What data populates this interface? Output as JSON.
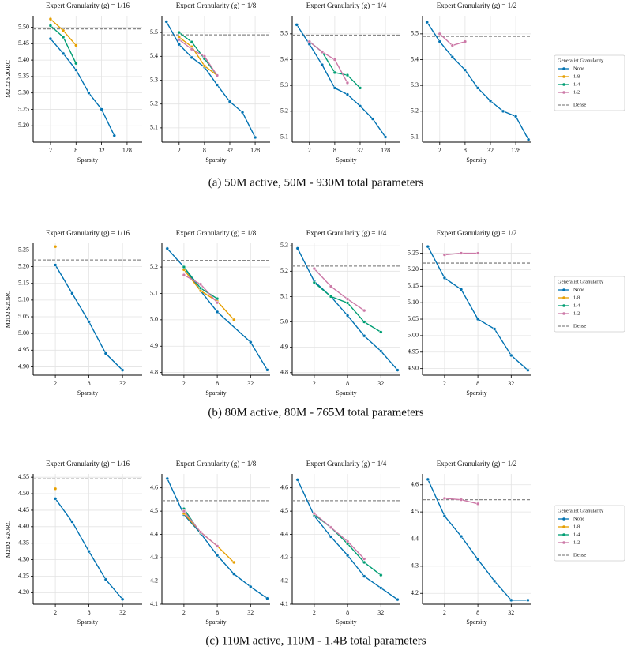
{
  "chart_data": [
    {
      "type": "line",
      "title": "Expert Granularity (g) = 1/16",
      "xlabel": "Sparsity",
      "ylabel": "M2D2 S2ORC",
      "log_x": true,
      "xlim": [
        0.78,
        290
      ],
      "xticks": [
        2,
        8,
        32,
        128
      ],
      "ylim": [
        5.15,
        5.535
      ],
      "yticks": [
        {
          "value": 5.2,
          "label": "5.20"
        },
        5.25,
        {
          "value": 5.3,
          "label": "5.30"
        },
        5.35,
        {
          "value": 5.4,
          "label": "5.40"
        },
        5.45,
        {
          "value": 5.5,
          "label": "5.50"
        }
      ],
      "grid": true,
      "reference_line": {
        "value": 5.495,
        "color": "#888888"
      },
      "series": [
        {
          "name": "None",
          "color": "#0072b2",
          "x": [
            2,
            4,
            8,
            16,
            32,
            64
          ],
          "values": [
            5.465,
            5.42,
            5.37,
            5.3,
            5.25,
            5.17
          ]
        },
        {
          "name": "1/8",
          "color": "#e69f00",
          "x": [
            2,
            4,
            8
          ],
          "values": [
            5.525,
            5.49,
            5.445
          ]
        },
        {
          "name": "1/4",
          "color": "#009e73",
          "x": [
            2,
            4,
            8
          ],
          "values": [
            5.505,
            5.47,
            5.39
          ]
        }
      ]
    },
    {
      "type": "line",
      "title": "Expert Granularity (g) = 1/8",
      "xlabel": "Sparsity",
      "log_x": true,
      "xlim": [
        0.78,
        290
      ],
      "xticks": [
        2,
        8,
        32,
        128
      ],
      "ylim": [
        5.04,
        5.57
      ],
      "yticks": [
        5.1,
        5.2,
        5.3,
        5.4,
        5.5
      ],
      "grid": true,
      "reference_line": {
        "value": 5.49,
        "color": "#888888"
      },
      "series": [
        {
          "name": "None",
          "color": "#0072b2",
          "x": [
            1,
            2,
            4,
            8,
            16,
            32,
            64,
            128
          ],
          "values": [
            5.545,
            5.45,
            5.395,
            5.355,
            5.28,
            5.21,
            5.165,
            5.06
          ]
        },
        {
          "name": "1/8",
          "color": "#e69f00",
          "x": [
            2,
            4,
            8,
            16
          ],
          "values": [
            5.48,
            5.44,
            5.36,
            5.32
          ]
        },
        {
          "name": "1/4",
          "color": "#009e73",
          "x": [
            2,
            4,
            8,
            16
          ],
          "values": [
            5.5,
            5.46,
            5.39,
            5.32
          ]
        },
        {
          "name": "1/2",
          "color": "#cc79a7",
          "x": [
            2,
            4,
            8,
            16
          ],
          "values": [
            5.47,
            5.43,
            5.4,
            5.32
          ]
        }
      ]
    },
    {
      "type": "line",
      "title": "Expert Granularity (g) = 1/4",
      "xlabel": "Sparsity",
      "log_x": true,
      "xlim": [
        0.78,
        290
      ],
      "xticks": [
        2,
        8,
        32,
        128
      ],
      "ylim": [
        5.08,
        5.57
      ],
      "yticks": [
        5.1,
        5.2,
        5.3,
        5.4,
        5.5
      ],
      "grid": true,
      "reference_line": {
        "value": 5.495,
        "color": "#888888"
      },
      "series": [
        {
          "name": "None",
          "color": "#0072b2",
          "x": [
            1,
            2,
            4,
            8,
            16,
            32,
            64,
            128
          ],
          "values": [
            5.535,
            5.46,
            5.38,
            5.29,
            5.265,
            5.22,
            5.17,
            5.1
          ]
        },
        {
          "name": "1/4",
          "color": "#009e73",
          "x": [
            2,
            4,
            8,
            16,
            32
          ],
          "values": [
            5.47,
            5.43,
            5.35,
            5.34,
            5.29
          ]
        },
        {
          "name": "1/2",
          "color": "#cc79a7",
          "x": [
            2,
            4,
            8,
            16
          ],
          "values": [
            5.47,
            5.43,
            5.4,
            5.31
          ]
        }
      ]
    },
    {
      "type": "line",
      "title": "Expert Granularity (g) = 1/2",
      "xlabel": "Sparsity",
      "log_x": true,
      "xlim": [
        0.78,
        290
      ],
      "xticks": [
        2,
        8,
        32,
        128
      ],
      "ylim": [
        5.08,
        5.57
      ],
      "yticks": [
        5.1,
        5.2,
        5.3,
        5.4,
        5.5
      ],
      "grid": true,
      "reference_line": {
        "value": 5.49,
        "color": "#888888"
      },
      "series": [
        {
          "name": "None",
          "color": "#0072b2",
          "x": [
            1,
            2,
            4,
            8,
            16,
            32,
            64,
            128,
            256
          ],
          "values": [
            5.545,
            5.47,
            5.41,
            5.36,
            5.29,
            5.24,
            5.2,
            5.18,
            5.09
          ]
        },
        {
          "name": "1/2",
          "color": "#cc79a7",
          "x": [
            2,
            4,
            8
          ],
          "values": [
            5.5,
            5.455,
            5.47
          ]
        }
      ]
    },
    {
      "type": "line",
      "title": "Expert Granularity (g) = 1/16",
      "xlabel": "Sparsity",
      "ylabel": "M2D2 S2ORC",
      "log_x": true,
      "xlim": [
        0.8,
        72
      ],
      "xticks": [
        2,
        8,
        32
      ],
      "ylim": [
        4.875,
        5.27
      ],
      "yticks": [
        {
          "value": 4.9,
          "label": "4.90"
        },
        4.95,
        {
          "value": 5,
          "label": "5.00"
        },
        5.05,
        {
          "value": 5.1,
          "label": "5.10"
        },
        5.15,
        {
          "value": 5.2,
          "label": "5.20"
        },
        5.25
      ],
      "grid": true,
      "reference_line": {
        "value": 5.22,
        "color": "#888888"
      },
      "series": [
        {
          "name": "None",
          "color": "#0072b2",
          "x": [
            2,
            4,
            8,
            16,
            32
          ],
          "values": [
            5.205,
            5.12,
            5.035,
            4.94,
            4.89
          ]
        },
        {
          "name": "1/8",
          "color": "#e69f00",
          "x": [
            2
          ],
          "values": [
            5.26
          ]
        }
      ]
    },
    {
      "type": "line",
      "title": "Expert Granularity (g) = 1/8",
      "xlabel": "Sparsity",
      "log_x": true,
      "xlim": [
        0.8,
        72
      ],
      "xticks": [
        2,
        8,
        32
      ],
      "ylim": [
        4.79,
        5.29
      ],
      "yticks": [
        4.8,
        4.9,
        {
          "value": 5,
          "label": "5.0"
        },
        5.1,
        5.2
      ],
      "grid": true,
      "reference_line": {
        "value": 5.225,
        "color": "#888888"
      },
      "series": [
        {
          "name": "None",
          "color": "#0072b2",
          "x": [
            1,
            2,
            4,
            8,
            32,
            64
          ],
          "values": [
            5.27,
            5.2,
            5.11,
            5.03,
            4.915,
            4.81
          ]
        },
        {
          "name": "1/8",
          "color": "#e69f00",
          "x": [
            2,
            4,
            8,
            16
          ],
          "values": [
            5.19,
            5.11,
            5.07,
            5.0
          ]
        },
        {
          "name": "1/4",
          "color": "#009e73",
          "x": [
            2,
            4,
            8
          ],
          "values": [
            5.2,
            5.12,
            5.08
          ]
        },
        {
          "name": "1/2",
          "color": "#cc79a7",
          "x": [
            2,
            4,
            8
          ],
          "values": [
            5.17,
            5.135,
            5.065
          ]
        }
      ]
    },
    {
      "type": "line",
      "title": "Expert Granularity (g) = 1/4",
      "xlabel": "Sparsity",
      "log_x": true,
      "xlim": [
        0.8,
        72
      ],
      "xticks": [
        2,
        8,
        32
      ],
      "ylim": [
        4.79,
        5.31
      ],
      "yticks": [
        4.8,
        4.9,
        {
          "value": 5,
          "label": "5.0"
        },
        5.1,
        5.2,
        5.3
      ],
      "grid": true,
      "reference_line": {
        "value": 5.22,
        "color": "#888888"
      },
      "series": [
        {
          "name": "None",
          "color": "#0072b2",
          "x": [
            1,
            2,
            4,
            8,
            16,
            32,
            64
          ],
          "values": [
            5.29,
            5.16,
            5.1,
            5.025,
            4.945,
            4.885,
            4.81
          ]
        },
        {
          "name": "1/4",
          "color": "#009e73",
          "x": [
            2,
            4,
            8,
            16,
            32
          ],
          "values": [
            5.155,
            5.1,
            5.075,
            5.0,
            4.96
          ]
        },
        {
          "name": "1/2",
          "color": "#cc79a7",
          "x": [
            2,
            4,
            8,
            16
          ],
          "values": [
            5.21,
            5.14,
            5.09,
            5.045
          ]
        }
      ]
    },
    {
      "type": "line",
      "title": "Expert Granularity (g) = 1/2",
      "xlabel": "Sparsity",
      "log_x": true,
      "xlim": [
        0.8,
        72
      ],
      "xticks": [
        2,
        8,
        32
      ],
      "ylim": [
        4.88,
        5.28
      ],
      "yticks": [
        {
          "value": 4.9,
          "label": "4.90"
        },
        4.95,
        {
          "value": 5,
          "label": "5.00"
        },
        5.05,
        {
          "value": 5.1,
          "label": "5.10"
        },
        5.15,
        {
          "value": 5.2,
          "label": "5.20"
        },
        5.25
      ],
      "grid": true,
      "reference_line": {
        "value": 5.22,
        "color": "#888888"
      },
      "series": [
        {
          "name": "None",
          "color": "#0072b2",
          "x": [
            1,
            2,
            4,
            8,
            16,
            32,
            64
          ],
          "values": [
            5.27,
            5.175,
            5.14,
            5.05,
            5.02,
            4.94,
            4.895
          ]
        },
        {
          "name": "1/2",
          "color": "#cc79a7",
          "x": [
            2,
            4,
            8
          ],
          "values": [
            5.245,
            5.25,
            5.25
          ]
        }
      ]
    },
    {
      "type": "line",
      "title": "Expert Granularity (g) = 1/16",
      "xlabel": "Sparsity",
      "ylabel": "M2D2 S2ORC",
      "log_x": true,
      "xlim": [
        0.8,
        72
      ],
      "xticks": [
        2,
        8,
        32
      ],
      "ylim": [
        4.165,
        4.56
      ],
      "yticks": [
        {
          "value": 4.2,
          "label": "4.20"
        },
        4.25,
        {
          "value": 4.3,
          "label": "4.30"
        },
        4.35,
        {
          "value": 4.4,
          "label": "4.40"
        },
        4.45,
        {
          "value": 4.5,
          "label": "4.50"
        },
        4.55
      ],
      "grid": true,
      "reference_line": {
        "value": 4.545,
        "color": "#888888"
      },
      "series": [
        {
          "name": "None",
          "color": "#0072b2",
          "x": [
            2,
            4,
            8,
            16,
            32
          ],
          "values": [
            4.485,
            4.415,
            4.325,
            4.24,
            4.18
          ]
        },
        {
          "name": "1/8",
          "color": "#e69f00",
          "x": [
            2
          ],
          "values": [
            4.515
          ]
        }
      ]
    },
    {
      "type": "line",
      "title": "Expert Granularity (g) = 1/8",
      "xlabel": "Sparsity",
      "log_x": true,
      "xlim": [
        0.8,
        72
      ],
      "xticks": [
        2,
        8,
        32
      ],
      "ylim": [
        4.1,
        4.66
      ],
      "yticks": [
        4.1,
        4.2,
        4.3,
        4.4,
        4.5,
        4.6
      ],
      "grid": true,
      "reference_line": {
        "value": 4.545,
        "color": "#888888"
      },
      "series": [
        {
          "name": "None",
          "color": "#0072b2",
          "x": [
            1,
            2,
            4,
            8,
            16,
            32,
            64
          ],
          "values": [
            4.64,
            4.485,
            4.405,
            4.31,
            4.23,
            4.175,
            4.125
          ]
        },
        {
          "name": "1/8",
          "color": "#e69f00",
          "x": [
            2,
            4,
            8,
            16
          ],
          "values": [
            4.49,
            4.41,
            4.35,
            4.28
          ]
        },
        {
          "name": "1/4",
          "color": "#009e73",
          "x": [
            2,
            4
          ],
          "values": [
            4.51,
            4.405
          ]
        },
        {
          "name": "1/2",
          "color": "#cc79a7",
          "x": [
            2,
            4,
            8
          ],
          "values": [
            4.5,
            4.41,
            4.35
          ]
        }
      ]
    },
    {
      "type": "line",
      "title": "Expert Granularity (g) = 1/4",
      "xlabel": "Sparsity",
      "log_x": true,
      "xlim": [
        0.8,
        72
      ],
      "xticks": [
        2,
        8,
        32
      ],
      "ylim": [
        4.1,
        4.66
      ],
      "yticks": [
        4.1,
        4.2,
        4.3,
        4.4,
        4.5,
        4.6
      ],
      "grid": true,
      "reference_line": {
        "value": 4.545,
        "color": "#888888"
      },
      "series": [
        {
          "name": "None",
          "color": "#0072b2",
          "x": [
            1,
            2,
            4,
            8,
            16,
            32,
            64
          ],
          "values": [
            4.635,
            4.48,
            4.39,
            4.31,
            4.22,
            4.17,
            4.12
          ]
        },
        {
          "name": "1/4",
          "color": "#009e73",
          "x": [
            2,
            4,
            8,
            16,
            32
          ],
          "values": [
            4.485,
            4.43,
            4.36,
            4.28,
            4.225
          ]
        },
        {
          "name": "1/2",
          "color": "#cc79a7",
          "x": [
            2,
            4,
            8,
            16
          ],
          "values": [
            4.49,
            4.43,
            4.37,
            4.295
          ]
        }
      ]
    },
    {
      "type": "line",
      "title": "Expert Granularity (g) = 1/2",
      "xlabel": "Sparsity",
      "log_x": true,
      "xlim": [
        0.8,
        72
      ],
      "xticks": [
        2,
        8,
        32
      ],
      "ylim": [
        4.16,
        4.64
      ],
      "yticks": [
        4.2,
        4.3,
        4.4,
        4.5,
        4.6
      ],
      "grid": true,
      "reference_line": {
        "value": 4.545,
        "color": "#888888"
      },
      "series": [
        {
          "name": "None",
          "color": "#0072b2",
          "x": [
            1,
            2,
            4,
            8,
            16,
            32,
            64
          ],
          "values": [
            4.62,
            4.485,
            4.41,
            4.325,
            4.245,
            4.175,
            4.175
          ]
        },
        {
          "name": "1/2",
          "color": "#cc79a7",
          "x": [
            2,
            4,
            8
          ],
          "values": [
            4.55,
            4.545,
            4.53
          ]
        }
      ]
    }
  ],
  "legends": [
    {
      "title": "Generalist Granularity",
      "entries": [
        {
          "name": "None",
          "color": "#0072b2"
        },
        {
          "name": "1/8",
          "color": "#e69f00"
        },
        {
          "name": "1/4",
          "color": "#009e73"
        },
        {
          "name": "1/2",
          "color": "#cc79a7"
        },
        {
          "name": "Dense",
          "color": "#888888",
          "dashed": true
        }
      ]
    },
    {
      "title": "Generalist Granularity",
      "entries": [
        {
          "name": "None",
          "color": "#0072b2"
        },
        {
          "name": "1/8",
          "color": "#e69f00"
        },
        {
          "name": "1/4",
          "color": "#009e73"
        },
        {
          "name": "1/2",
          "color": "#cc79a7"
        },
        {
          "name": "Dense",
          "color": "#888888",
          "dashed": true
        }
      ]
    },
    {
      "title": "Generalist Granularity",
      "entries": [
        {
          "name": "None",
          "color": "#0072b2"
        },
        {
          "name": "1/8",
          "color": "#e69f00"
        },
        {
          "name": "1/4",
          "color": "#009e73"
        },
        {
          "name": "1/2",
          "color": "#cc79a7"
        },
        {
          "name": "Dense",
          "color": "#888888",
          "dashed": true
        }
      ]
    }
  ],
  "captions": [
    "(a) 50M active, 50M - 930M total parameters",
    "(b) 80M active, 80M - 765M total parameters",
    "(c) 110M active, 110M - 1.4B total parameters"
  ]
}
